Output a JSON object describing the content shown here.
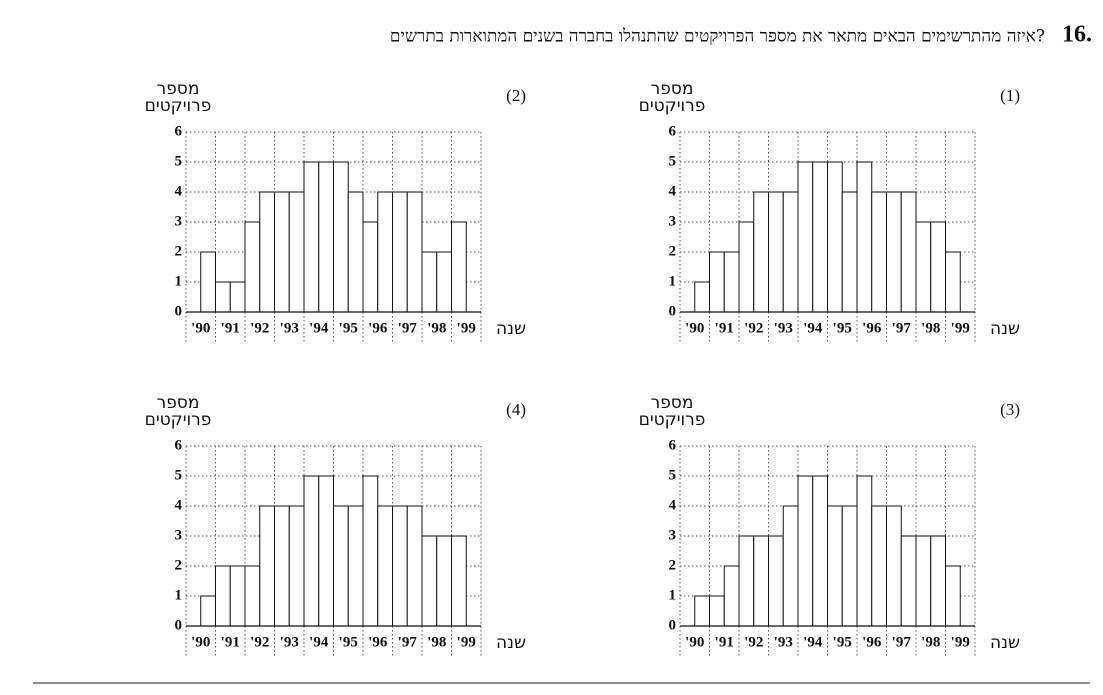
{
  "question": {
    "number": "16.",
    "text": "איזה מהתרשימים הבאים מתאר את מספר הפרויקטים שהתנהלו בחברה בשנים המתוארות בתרשים?"
  },
  "chart_data": [
    {
      "type": "histogram",
      "label": "(1)",
      "y_label": [
        "מספר",
        "פרויקטים"
      ],
      "x_label": "שנה",
      "bins": [
        1990,
        1990.5,
        1991,
        1991.5,
        1992,
        1992.5,
        1993,
        1993.5,
        1994,
        1994.5,
        1995,
        1995.5,
        1996,
        1996.5,
        1997,
        1997.5,
        1998,
        1998.5,
        1999
      ],
      "values": [
        1,
        2,
        2,
        3,
        4,
        4,
        4,
        5,
        5,
        5,
        4,
        5,
        4,
        4,
        4,
        3,
        3,
        2
      ],
      "xlim": [
        1989.5,
        1999.5
      ],
      "xticks": [
        {
          "value": 1990,
          "label": "'90"
        },
        {
          "value": 1991,
          "label": "'91"
        },
        {
          "value": 1992,
          "label": "'92"
        },
        {
          "value": 1993,
          "label": "'93"
        },
        {
          "value": 1994,
          "label": "'94"
        },
        {
          "value": 1995,
          "label": "'95"
        },
        {
          "value": 1996,
          "label": "'96"
        },
        {
          "value": 1997,
          "label": "'97"
        },
        {
          "value": 1998,
          "label": "'98"
        },
        {
          "value": 1999,
          "label": "'99"
        }
      ],
      "ylim": [
        0,
        6
      ],
      "yticks": [
        0,
        1,
        2,
        3,
        4,
        5,
        6
      ],
      "grid": true,
      "color": "#ffffff"
    },
    {
      "type": "histogram",
      "label": "(2)",
      "y_label": [
        "מספר",
        "פרויקטים"
      ],
      "x_label": "שנה",
      "bins": [
        1990,
        1990.5,
        1991,
        1991.5,
        1992,
        1992.5,
        1993,
        1993.5,
        1994,
        1994.5,
        1995,
        1995.5,
        1996,
        1996.5,
        1997,
        1997.5,
        1998,
        1998.5,
        1999
      ],
      "values": [
        2,
        1,
        1,
        3,
        4,
        4,
        4,
        5,
        5,
        5,
        4,
        3,
        4,
        4,
        4,
        2,
        2,
        3
      ],
      "xlim": [
        1989.5,
        1999.5
      ],
      "xticks": [
        {
          "value": 1990,
          "label": "'90"
        },
        {
          "value": 1991,
          "label": "'91"
        },
        {
          "value": 1992,
          "label": "'92"
        },
        {
          "value": 1993,
          "label": "'93"
        },
        {
          "value": 1994,
          "label": "'94"
        },
        {
          "value": 1995,
          "label": "'95"
        },
        {
          "value": 1996,
          "label": "'96"
        },
        {
          "value": 1997,
          "label": "'97"
        },
        {
          "value": 1998,
          "label": "'98"
        },
        {
          "value": 1999,
          "label": "'99"
        }
      ],
      "ylim": [
        0,
        6
      ],
      "yticks": [
        0,
        1,
        2,
        3,
        4,
        5,
        6
      ],
      "grid": true,
      "color": "#ffffff"
    },
    {
      "type": "histogram",
      "label": "(3)",
      "y_label": [
        "מספר",
        "פרויקטים"
      ],
      "x_label": "שנה",
      "bins": [
        1990,
        1990.5,
        1991,
        1991.5,
        1992,
        1992.5,
        1993,
        1993.5,
        1994,
        1994.5,
        1995,
        1995.5,
        1996,
        1996.5,
        1997,
        1997.5,
        1998,
        1998.5,
        1999
      ],
      "values": [
        1,
        1,
        2,
        3,
        3,
        3,
        4,
        5,
        5,
        4,
        4,
        5,
        4,
        4,
        3,
        3,
        3,
        2
      ],
      "xlim": [
        1989.5,
        1999.5
      ],
      "xticks": [
        {
          "value": 1990,
          "label": "'90"
        },
        {
          "value": 1991,
          "label": "'91"
        },
        {
          "value": 1992,
          "label": "'92"
        },
        {
          "value": 1993,
          "label": "'93"
        },
        {
          "value": 1994,
          "label": "'94"
        },
        {
          "value": 1995,
          "label": "'95"
        },
        {
          "value": 1996,
          "label": "'96"
        },
        {
          "value": 1997,
          "label": "'97"
        },
        {
          "value": 1998,
          "label": "'98"
        },
        {
          "value": 1999,
          "label": "'99"
        }
      ],
      "ylim": [
        0,
        6
      ],
      "yticks": [
        0,
        1,
        2,
        3,
        4,
        5,
        6
      ],
      "grid": true,
      "color": "#ffffff"
    },
    {
      "type": "histogram",
      "label": "(4)",
      "y_label": [
        "מספר",
        "פרויקטים"
      ],
      "x_label": "שנה",
      "bins": [
        1990,
        1990.5,
        1991,
        1991.5,
        1992,
        1992.5,
        1993,
        1993.5,
        1994,
        1994.5,
        1995,
        1995.5,
        1996,
        1996.5,
        1997,
        1997.5,
        1998,
        1998.5,
        1999
      ],
      "values": [
        1,
        2,
        2,
        2,
        4,
        4,
        4,
        5,
        5,
        4,
        4,
        5,
        4,
        4,
        4,
        3,
        3,
        3
      ],
      "xlim": [
        1989.5,
        1999.5
      ],
      "xticks": [
        {
          "value": 1990,
          "label": "'90"
        },
        {
          "value": 1991,
          "label": "'91"
        },
        {
          "value": 1992,
          "label": "'92"
        },
        {
          "value": 1993,
          "label": "'93"
        },
        {
          "value": 1994,
          "label": "'94"
        },
        {
          "value": 1995,
          "label": "'95"
        },
        {
          "value": 1996,
          "label": "'96"
        },
        {
          "value": 1997,
          "label": "'97"
        },
        {
          "value": 1998,
          "label": "'98"
        },
        {
          "value": 1999,
          "label": "'99"
        }
      ],
      "ylim": [
        0,
        6
      ],
      "yticks": [
        0,
        1,
        2,
        3,
        4,
        5,
        6
      ],
      "grid": true,
      "color": "#ffffff"
    }
  ]
}
